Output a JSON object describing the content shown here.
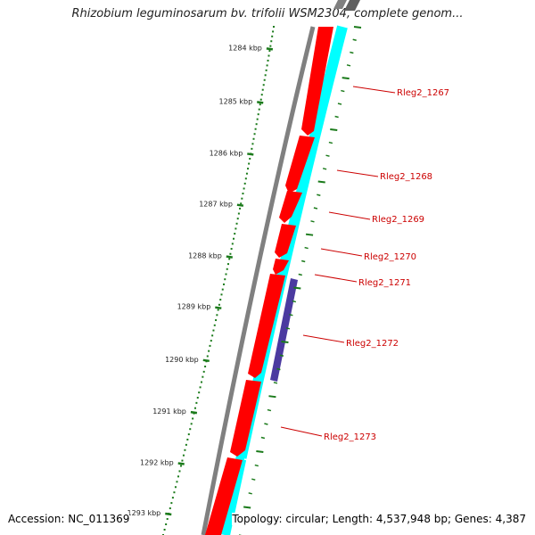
{
  "title": "Rhizobium leguminosarum bv. trifolii WSM2304, complete genom...",
  "footer": {
    "accession": "Accession: NC_011369",
    "topology": "Topology: circular; Length: 4,537,948 bp; Genes: 4,387"
  },
  "ruler": [
    {
      "label": "1284 kbp"
    },
    {
      "label": "1285 kbp"
    },
    {
      "label": "1286 kbp"
    },
    {
      "label": "1287 kbp"
    },
    {
      "label": "1288 kbp"
    },
    {
      "label": "1289 kbp"
    },
    {
      "label": "1290 kbp"
    },
    {
      "label": "1291 kbp"
    },
    {
      "label": "1292 kbp"
    },
    {
      "label": "1293 kbp"
    }
  ],
  "genes": [
    {
      "label": "Rleg2_1267"
    },
    {
      "label": "Rleg2_1268"
    },
    {
      "label": "Rleg2_1269"
    },
    {
      "label": "Rleg2_1270"
    },
    {
      "label": "Rleg2_1271"
    },
    {
      "label": "Rleg2_1272"
    },
    {
      "label": "Rleg2_1273"
    }
  ],
  "colors": {
    "gene": "#ff0000",
    "cds": "#00ffff",
    "feature": "#4b3aa0",
    "backbone": "#808080",
    "ruler": "#1a7a1a",
    "label": "#cc0000"
  }
}
